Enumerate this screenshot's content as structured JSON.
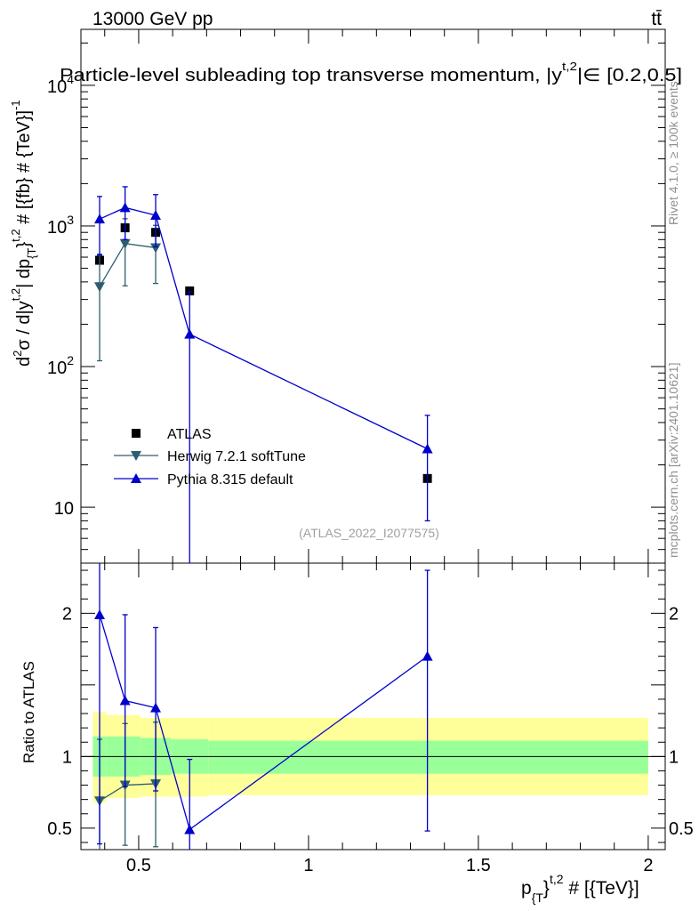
{
  "header": {
    "energy_label": "13000 GeV pp",
    "process_label": "tt̄"
  },
  "chart_data": [
    {
      "type": "scatter",
      "panel": "main",
      "title": "Particle-level subleading top transverse momentum, |y^{t,2}| ∈ [0.2,0.5]",
      "ylabel": "d²σ / d|y^{t,2}| dp_{T}^{t,2} # [{fb} # {TeV}]^{-1}",
      "xlabel": "",
      "y_scale": "log",
      "xlim": [
        0.33,
        2.05
      ],
      "ylim": [
        4,
        25000
      ],
      "y_ticks": [
        {
          "v": 10,
          "label": "10"
        },
        {
          "v": 100,
          "label": "10²"
        },
        {
          "v": 1000,
          "label": "10³"
        },
        {
          "v": 10000,
          "label": "10⁴"
        }
      ],
      "watermark": "(ATLAS_2022_I2077575)",
      "series": [
        {
          "name": "ATLAS",
          "color": "#000000",
          "marker": "square",
          "line": false,
          "x": [
            0.385,
            0.46,
            0.55,
            0.65,
            1.35
          ],
          "y": [
            570,
            970,
            900,
            345,
            16
          ]
        },
        {
          "name": "Herwig 7.2.1 softTune",
          "color": "#2e5e6e",
          "marker": "triangle-down",
          "line": true,
          "x": [
            0.385,
            0.46,
            0.55
          ],
          "y": [
            370,
            750,
            700
          ],
          "y_err_low": [
            260,
            375,
            310
          ],
          "y_err_high": [
            260,
            375,
            310
          ]
        },
        {
          "name": "Pythia 8.315 default",
          "color": "#0000cc",
          "marker": "triangle-up",
          "line": true,
          "x": [
            0.385,
            0.46,
            0.55,
            0.65,
            1.35
          ],
          "y": [
            1120,
            1350,
            1190,
            170,
            26
          ],
          "y_err_low": [
            500,
            550,
            480,
            169,
            18
          ],
          "y_err_high": [
            500,
            550,
            480,
            170,
            19
          ]
        }
      ]
    },
    {
      "type": "scatter",
      "panel": "ratio",
      "ylabel": "Ratio to ATLAS",
      "xlabel": "p_{T}^{t,2} # [{TeV}]",
      "xlim": [
        0.33,
        2.05
      ],
      "ylim": [
        0.35,
        2.35
      ],
      "x_ticks": [
        {
          "v": 0.5,
          "label": "0.5"
        },
        {
          "v": 1,
          "label": "1"
        },
        {
          "v": 1.5,
          "label": "1.5"
        },
        {
          "v": 2,
          "label": "2"
        }
      ],
      "y_ticks": [
        {
          "v": 0.5,
          "label": "0.5"
        },
        {
          "v": 1,
          "label": "1"
        },
        {
          "v": 1.5,
          "label": ""
        },
        {
          "v": 2,
          "label": "2"
        }
      ],
      "bands": [
        {
          "x0": 0.365,
          "x1": 0.405,
          "total": [
            0.68,
            1.31
          ],
          "stat": [
            0.86,
            1.14
          ]
        },
        {
          "x0": 0.405,
          "x1": 0.505,
          "total": [
            0.71,
            1.29
          ],
          "stat": [
            0.86,
            1.14
          ]
        },
        {
          "x0": 0.505,
          "x1": 0.595,
          "total": [
            0.72,
            1.27
          ],
          "stat": [
            0.87,
            1.13
          ]
        },
        {
          "x0": 0.595,
          "x1": 0.705,
          "total": [
            0.72,
            1.27
          ],
          "stat": [
            0.88,
            1.12
          ]
        },
        {
          "x0": 0.705,
          "x1": 2.0,
          "total": [
            0.73,
            1.27
          ],
          "stat": [
            0.88,
            1.11
          ]
        }
      ],
      "series": [
        {
          "name": "Herwig 7.2.1 softTune",
          "color": "#2e5e6e",
          "marker": "triangle-down",
          "line": true,
          "x": [
            0.385,
            0.46,
            0.55
          ],
          "y": [
            0.69,
            0.8,
            0.81
          ],
          "y_err_low": [
            0.34,
            0.42,
            0.44
          ],
          "y_err_high": [
            0.43,
            0.43,
            0.43
          ]
        },
        {
          "name": "Pythia 8.315 default",
          "color": "#0000cc",
          "marker": "triangle-up",
          "line": true,
          "x": [
            0.385,
            0.46,
            0.55,
            0.65,
            1.35
          ],
          "y": [
            1.99,
            1.39,
            1.34,
            0.49,
            1.7
          ],
          "y_err_low": [
            1.6,
            0.6,
            0.58,
            0.49,
            1.22
          ],
          "y_err_high": [
            0.6,
            0.6,
            0.56,
            0.49,
            0.6
          ]
        }
      ]
    }
  ],
  "side_labels": {
    "rivet": "Rivet 4.1.0, ≥ 100k events",
    "mcplots": "mcplots.cern.ch [arXiv:2401.10621]"
  }
}
